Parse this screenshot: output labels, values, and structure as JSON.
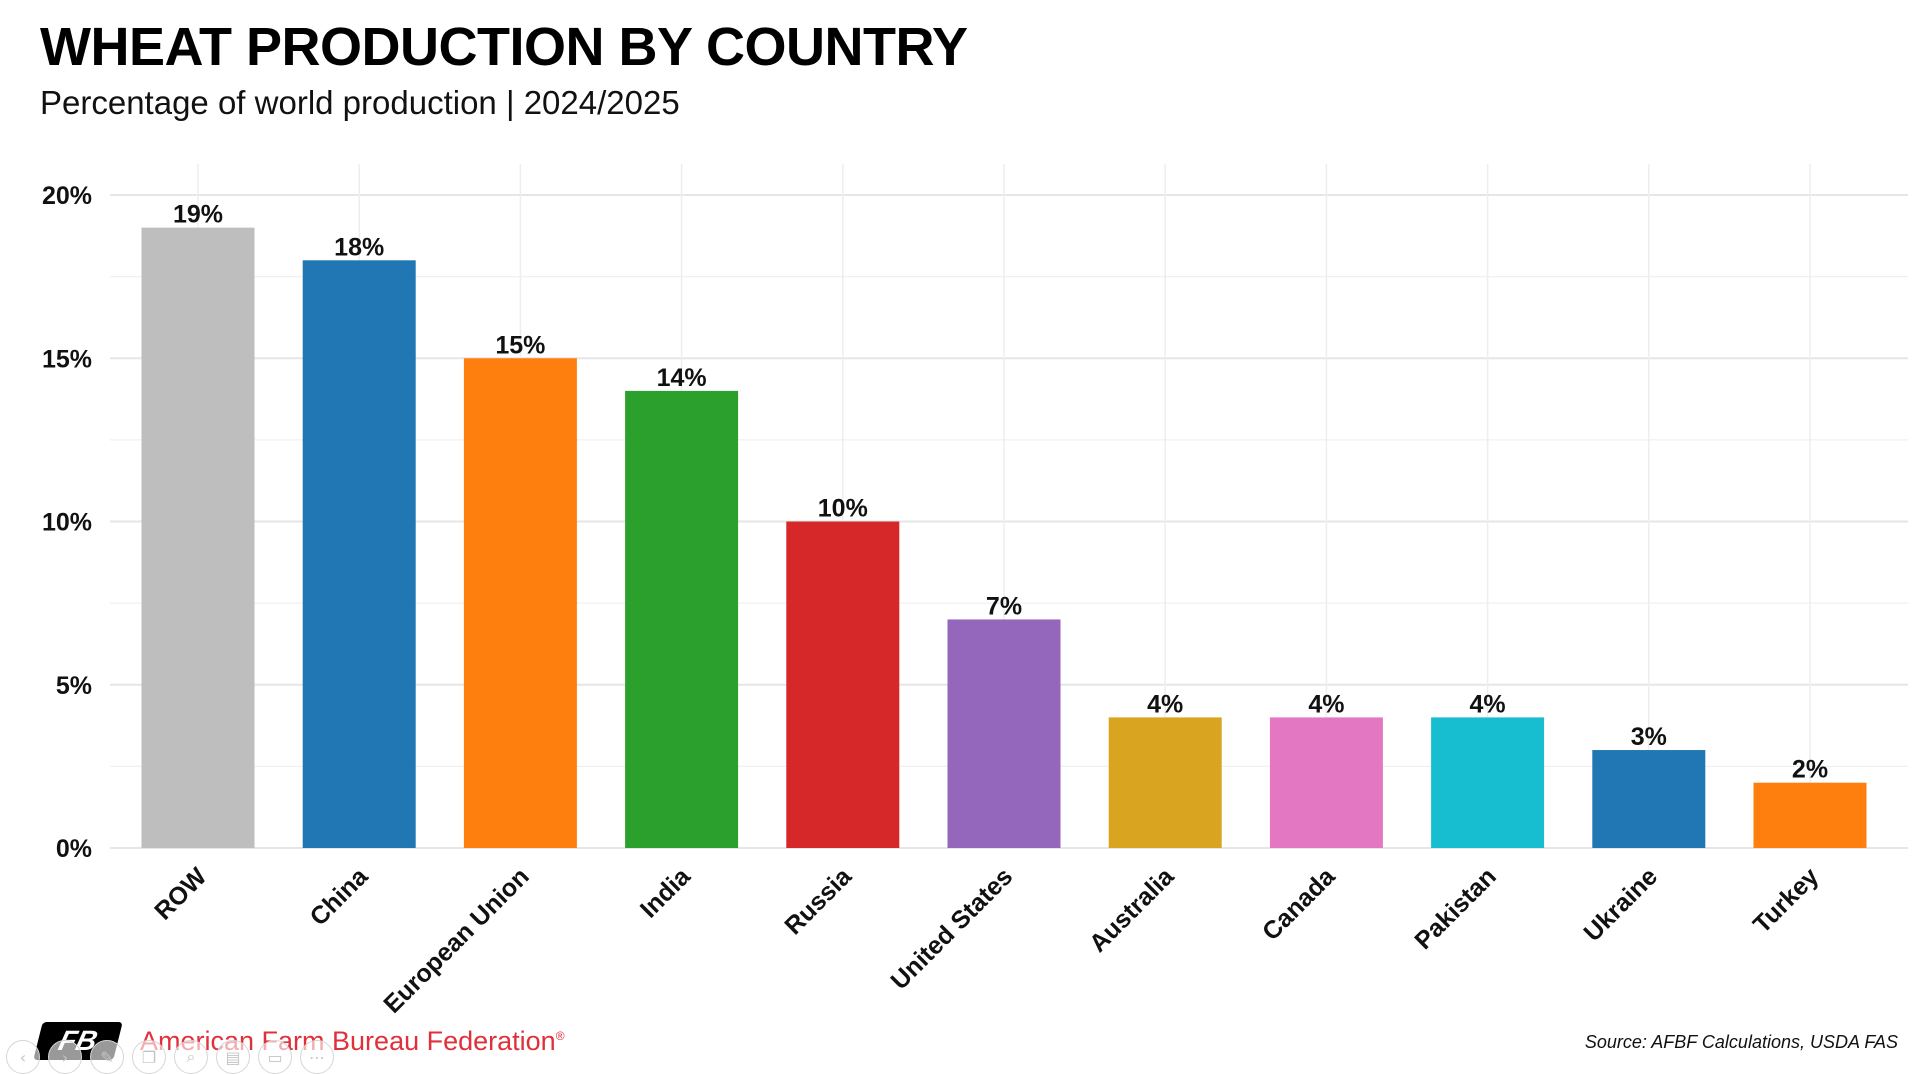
{
  "chart_data": {
    "type": "bar",
    "title": "WHEAT PRODUCTION BY COUNTRY",
    "subtitle": "Percentage of world production | 2024/2025",
    "xlabel": "",
    "ylabel": "",
    "categories": [
      "ROW",
      "China",
      "European Union",
      "India",
      "Russia",
      "United States",
      "Australia",
      "Canada",
      "Pakistan",
      "Ukraine",
      "Turkey"
    ],
    "values": [
      19,
      18,
      15,
      14,
      10,
      7,
      4,
      4,
      4,
      3,
      2
    ],
    "data_labels": [
      "19%",
      "18%",
      "15%",
      "14%",
      "10%",
      "7%",
      "4%",
      "4%",
      "4%",
      "3%",
      "2%"
    ],
    "colors": [
      "#bebebe",
      "#2077b4",
      "#fe7f0e",
      "#2ca02c",
      "#d62828",
      "#9467bd",
      "#d9a521",
      "#e377c2",
      "#17becf",
      "#2077b4",
      "#fe7f0e"
    ],
    "ylim": [
      0,
      20
    ],
    "yticks": [
      0,
      5,
      10,
      15,
      20
    ],
    "ytick_labels": [
      "0%",
      "5%",
      "10%",
      "15%",
      "20%"
    ],
    "grid": true,
    "legend": "none"
  },
  "footer": {
    "logo_text": "FB",
    "organization": "American Farm Bureau Federation",
    "registered_mark": "®",
    "source": "Source: AFBF Calculations, USDA FAS"
  },
  "nav": {
    "icons": [
      "chevron-left-icon",
      "chevron-right-icon",
      "pen-icon",
      "copy-icon",
      "zoom-icon",
      "document-icon",
      "window-icon",
      "more-icon"
    ],
    "glyphs": [
      "‹",
      "›",
      "✎",
      "❐",
      "⌕",
      "▤",
      "▭",
      "⋯"
    ]
  }
}
